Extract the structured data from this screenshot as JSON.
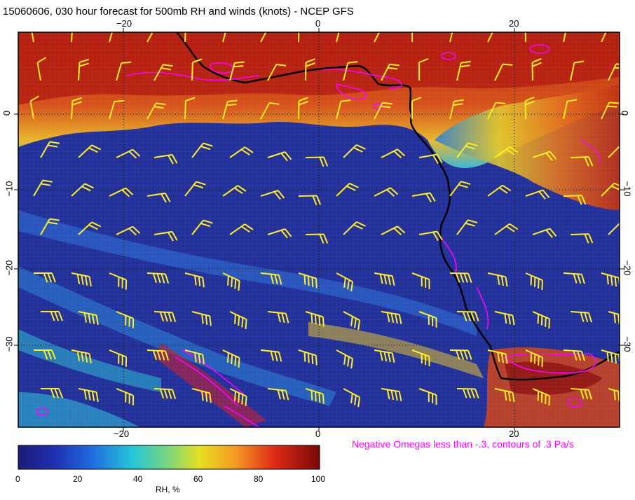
{
  "title": "15060606, 030 hour forecast for 500mb RH and winds (knots) - NCEP GFS",
  "map": {
    "lon_ticks": [
      "−20",
      "0",
      "20"
    ],
    "lat_ticks": [
      "0",
      "−10",
      "−20",
      "−30"
    ],
    "lon_range": [
      -30,
      31
    ],
    "lat_range": [
      -40,
      10
    ],
    "fill_variable": "RH",
    "overlay_wind_barbs": true,
    "overlay_omega_contours": true,
    "colors": {
      "rh_low": "#1e1f8f",
      "rh_mid": "#2b8cd9",
      "rh_60": "#d8d21a",
      "rh_high": "#8a0b0b",
      "barbs": "#ffee22",
      "omega_contours": "#ff00ff",
      "coastline": "#000000"
    }
  },
  "note": "Negative Omegas less than -.3, contours of .3 Pa/s",
  "colorbar": {
    "label": "RH, %",
    "ticks": [
      "0",
      "20",
      "40",
      "60",
      "80",
      "100"
    ],
    "range": [
      0,
      100
    ]
  }
}
